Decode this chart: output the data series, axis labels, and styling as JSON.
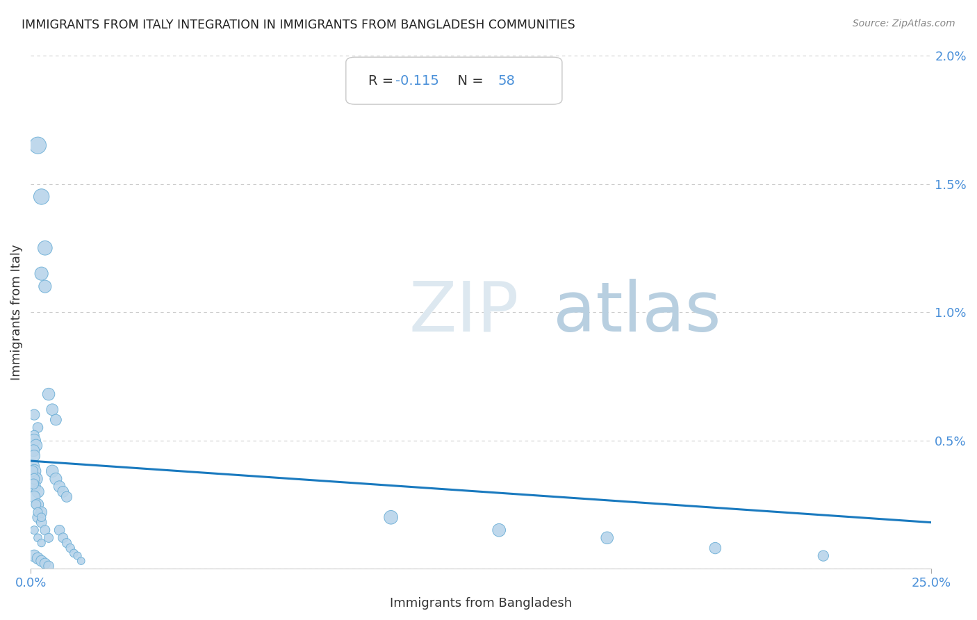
{
  "title": "IMMIGRANTS FROM ITALY INTEGRATION IN IMMIGRANTS FROM BANGLADESH COMMUNITIES",
  "source": "Source: ZipAtlas.com",
  "xlabel": "Immigrants from Bangladesh",
  "ylabel": "Immigrants from Italy",
  "R_val": "-0.115",
  "N_val": "58",
  "xlim": [
    0.0,
    0.25
  ],
  "ylim": [
    0.0,
    0.02
  ],
  "xticks": [
    0.0,
    0.25
  ],
  "xtick_labels": [
    "0.0%",
    "25.0%"
  ],
  "yticks": [
    0.0,
    0.005,
    0.01,
    0.015,
    0.02
  ],
  "ytick_labels": [
    "",
    "0.5%",
    "1.0%",
    "1.5%",
    "2.0%"
  ],
  "scatter_x": [
    0.002,
    0.003,
    0.004,
    0.003,
    0.004,
    0.005,
    0.006,
    0.007,
    0.001,
    0.002,
    0.001,
    0.0005,
    0.001,
    0.0015,
    0.001,
    0.002,
    0.001,
    0.002,
    0.003,
    0.002,
    0.003,
    0.004,
    0.005,
    0.001,
    0.0015,
    0.0008,
    0.001,
    0.0005,
    0.001,
    0.0008,
    0.0015,
    0.002,
    0.003,
    0.001,
    0.002,
    0.003,
    0.006,
    0.007,
    0.008,
    0.009,
    0.01,
    0.008,
    0.009,
    0.01,
    0.011,
    0.012,
    0.013,
    0.014,
    0.001,
    0.002,
    0.003,
    0.004,
    0.005,
    0.1,
    0.13,
    0.16,
    0.19,
    0.22
  ],
  "scatter_y": [
    0.0165,
    0.0145,
    0.0125,
    0.0115,
    0.011,
    0.0068,
    0.0062,
    0.0058,
    0.006,
    0.0055,
    0.0052,
    0.004,
    0.0038,
    0.0035,
    0.0032,
    0.003,
    0.0028,
    0.0025,
    0.0022,
    0.002,
    0.0018,
    0.0015,
    0.0012,
    0.005,
    0.0048,
    0.0046,
    0.0044,
    0.0038,
    0.0035,
    0.0033,
    0.0025,
    0.0022,
    0.002,
    0.0015,
    0.0012,
    0.001,
    0.0038,
    0.0035,
    0.0032,
    0.003,
    0.0028,
    0.0015,
    0.0012,
    0.001,
    0.0008,
    0.0006,
    0.0005,
    0.0003,
    0.0005,
    0.0004,
    0.0003,
    0.0002,
    0.0001,
    0.002,
    0.0015,
    0.0012,
    0.0008,
    0.0005
  ],
  "scatter_sizes": [
    300,
    260,
    220,
    190,
    170,
    160,
    145,
    130,
    120,
    110,
    100,
    200,
    190,
    180,
    170,
    160,
    150,
    140,
    130,
    120,
    110,
    100,
    90,
    170,
    160,
    150,
    140,
    130,
    120,
    110,
    100,
    90,
    80,
    75,
    70,
    65,
    160,
    150,
    140,
    130,
    120,
    110,
    100,
    90,
    80,
    70,
    65,
    60,
    150,
    140,
    130,
    120,
    110,
    200,
    180,
    160,
    140,
    120
  ],
  "trend_x": [
    0.0,
    0.25
  ],
  "trend_y_start": 0.0042,
  "trend_y_end": 0.0018,
  "scatter_color": "#b8d4ea",
  "scatter_edge_color": "#6aaed6",
  "trend_color": "#1a7abf",
  "annotation_text_color": "#333333",
  "annotation_blue_color": "#4a90d9",
  "background_color": "#ffffff",
  "title_color": "#222222",
  "grid_color": "#cccccc",
  "axis_label_color": "#333333",
  "tick_label_color": "#4a90d9",
  "watermark_zip_color": "#dde8f0",
  "watermark_atlas_color": "#b8cfe0"
}
